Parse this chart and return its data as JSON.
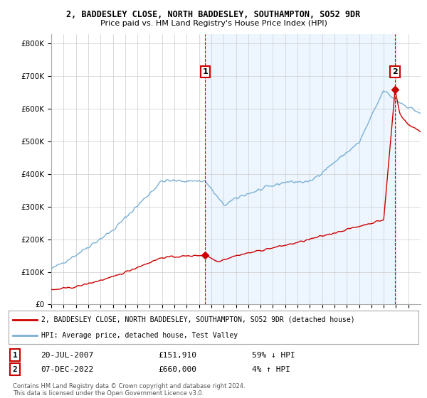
{
  "title_line1": "2, BADDESLEY CLOSE, NORTH BADDESLEY, SOUTHAMPTON, SO52 9DR",
  "title_line2": "Price paid vs. HM Land Registry's House Price Index (HPI)",
  "yticks": [
    0,
    100000,
    200000,
    300000,
    400000,
    500000,
    600000,
    700000,
    800000
  ],
  "ytick_labels": [
    "£0",
    "£100K",
    "£200K",
    "£300K",
    "£400K",
    "£500K",
    "£600K",
    "£700K",
    "£800K"
  ],
  "ylim": [
    0,
    830000
  ],
  "xlim_start": 1995,
  "xlim_end": 2025,
  "hpi_color": "#7ab0d4",
  "price_color": "#cc0000",
  "shade_color": "#ddeeff",
  "marker1_year": 2007.54,
  "marker1_price": 151910,
  "marker1_date": "20-JUL-2007",
  "marker1_pct": "59% ↓ HPI",
  "marker2_year": 2022.93,
  "marker2_price": 660000,
  "marker2_date": "07-DEC-2022",
  "marker2_pct": "4% ↑ HPI",
  "legend_line1": "2, BADDESLEY CLOSE, NORTH BADDESLEY, SOUTHAMPTON, SO52 9DR (detached house)",
  "legend_line2": "HPI: Average price, detached house, Test Valley",
  "footnote": "Contains HM Land Registry data © Crown copyright and database right 2024.\nThis data is licensed under the Open Government Licence v3.0.",
  "background_color": "#ffffff",
  "grid_color": "#cccccc"
}
